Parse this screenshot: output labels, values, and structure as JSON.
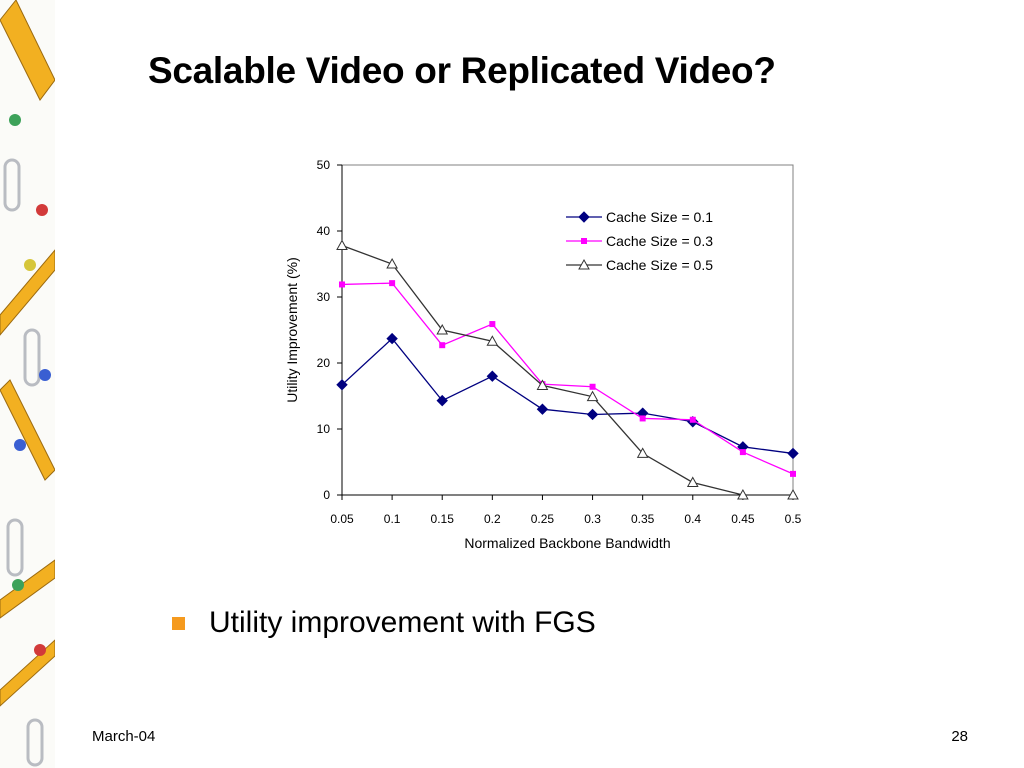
{
  "slide": {
    "title": "Scalable Video or Replicated Video?",
    "bullet": "Utility improvement with FGS",
    "footer_date": "March-04",
    "page_number": "28",
    "bullet_color": "#f59a1e"
  },
  "chart_data": {
    "type": "line",
    "xlabel": "Normalized Backbone Bandwidth",
    "ylabel": "Utility Improvement (%)",
    "x": [
      0.05,
      0.1,
      0.15,
      0.2,
      0.25,
      0.3,
      0.35,
      0.4,
      0.45,
      0.5
    ],
    "x_tick_labels": [
      "0.05",
      "0.1",
      "0.15",
      "0.2",
      "0.25",
      "0.3",
      "0.35",
      "0.4",
      "0.45",
      "0.5"
    ],
    "ylim": [
      0,
      50
    ],
    "y_ticks": [
      0,
      10,
      20,
      30,
      40,
      50
    ],
    "grid": false,
    "legend_position": "top-right",
    "series": [
      {
        "name": "Cache Size = 0.1",
        "color": "#000080",
        "marker": "diamond",
        "values": [
          16.7,
          23.7,
          14.3,
          18.0,
          13.0,
          12.2,
          12.4,
          11.1,
          7.3,
          6.3
        ]
      },
      {
        "name": "Cache Size = 0.3",
        "color": "#ff00ff",
        "marker": "square",
        "values": [
          31.9,
          32.1,
          22.7,
          25.9,
          16.8,
          16.4,
          11.6,
          11.4,
          6.5,
          3.2
        ]
      },
      {
        "name": "Cache Size = 0.5",
        "color": "#333333",
        "marker": "triangle",
        "values": [
          37.8,
          35.0,
          25.0,
          23.3,
          16.6,
          14.9,
          6.3,
          1.9,
          0.0,
          0.0
        ]
      }
    ]
  }
}
